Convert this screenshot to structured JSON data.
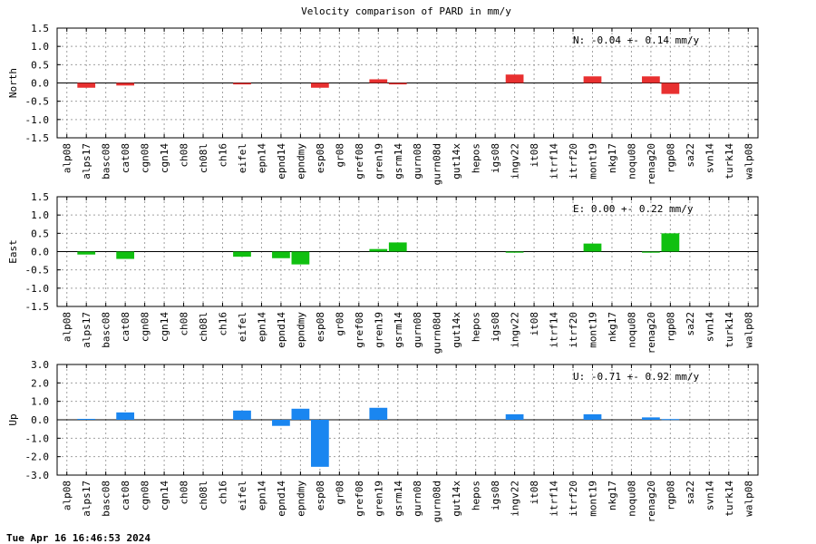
{
  "title": "Velocity comparison of PARD in mm/y",
  "timestamp": "Tue Apr 16 16:46:53 2024",
  "chart_data": [
    {
      "type": "bar",
      "ylabel": "North",
      "stat": "N:  -0.04 +-  0.14 mm/y",
      "color": "#e83030",
      "ylim": [
        -1.5,
        1.5
      ],
      "yticks": [
        -1.5,
        -1.0,
        -0.5,
        0.0,
        0.5,
        1.0,
        1.5
      ],
      "ytick_labels": [
        "-1.5",
        "-1.0",
        "-0.5",
        "0.0",
        "0.5",
        "1.0",
        "1.5"
      ],
      "grid": true,
      "categories": [
        "alp08",
        "alps17",
        "basc08",
        "cat08",
        "cgn08",
        "cgn14",
        "ch08",
        "ch08l",
        "ch16",
        "eifel",
        "epn14",
        "epnd14",
        "epndmy",
        "esp08",
        "gr08",
        "gref08",
        "gren19",
        "gsrm14",
        "gurn08",
        "gurn08d",
        "gut14x",
        "hepos",
        "igs08",
        "ingv22",
        "it08",
        "itrf14",
        "itrf20",
        "mont19",
        "nkg17",
        "noqu08",
        "renag20",
        "rgp08",
        "sa22",
        "svn14",
        "turk14",
        "walp08"
      ],
      "values": [
        null,
        -0.13,
        null,
        -0.07,
        null,
        null,
        null,
        null,
        null,
        -0.04,
        null,
        null,
        null,
        -0.13,
        null,
        null,
        0.1,
        -0.04,
        null,
        null,
        null,
        null,
        null,
        0.23,
        null,
        null,
        null,
        0.18,
        null,
        null,
        0.18,
        -0.3,
        null,
        null,
        null,
        null
      ]
    },
    {
      "type": "bar",
      "ylabel": "East",
      "stat": "E:   0.00 +-  0.22 mm/y",
      "color": "#10c010",
      "ylim": [
        -1.5,
        1.5
      ],
      "yticks": [
        -1.5,
        -1.0,
        -0.5,
        0.0,
        0.5,
        1.0,
        1.5
      ],
      "ytick_labels": [
        "-1.5",
        "-1.0",
        "-0.5",
        "0.0",
        "0.5",
        "1.0",
        "1.5"
      ],
      "grid": true,
      "categories": [
        "alp08",
        "alps17",
        "basc08",
        "cat08",
        "cgn08",
        "cgn14",
        "ch08",
        "ch08l",
        "ch16",
        "eifel",
        "epn14",
        "epnd14",
        "epndmy",
        "esp08",
        "gr08",
        "gref08",
        "gren19",
        "gsrm14",
        "gurn08",
        "gurn08d",
        "gut14x",
        "hepos",
        "igs08",
        "ingv22",
        "it08",
        "itrf14",
        "itrf20",
        "mont19",
        "nkg17",
        "noqu08",
        "renag20",
        "rgp08",
        "sa22",
        "svn14",
        "turk14",
        "walp08"
      ],
      "values": [
        null,
        -0.08,
        null,
        -0.2,
        null,
        null,
        null,
        null,
        null,
        -0.14,
        null,
        -0.18,
        -0.35,
        null,
        null,
        null,
        0.07,
        0.25,
        null,
        null,
        null,
        null,
        null,
        -0.03,
        null,
        null,
        null,
        0.22,
        null,
        null,
        -0.03,
        0.5,
        null,
        null,
        null,
        null
      ]
    },
    {
      "type": "bar",
      "ylabel": "Up",
      "stat": "U:  -0.71 +-  0.92 mm/y",
      "color": "#1a86f0",
      "ylim": [
        -3.0,
        3.0
      ],
      "yticks": [
        -3.0,
        -2.0,
        -1.0,
        0.0,
        1.0,
        2.0,
        3.0
      ],
      "ytick_labels": [
        "-3.0",
        "-2.0",
        "-1.0",
        "0.0",
        "1.0",
        "2.0",
        "3.0"
      ],
      "grid": true,
      "categories": [
        "alp08",
        "alps17",
        "basc08",
        "cat08",
        "cgn08",
        "cgn14",
        "ch08",
        "ch08l",
        "ch16",
        "eifel",
        "epn14",
        "epnd14",
        "epndmy",
        "esp08",
        "gr08",
        "gref08",
        "gren19",
        "gsrm14",
        "gurn08",
        "gurn08d",
        "gut14x",
        "hepos",
        "igs08",
        "ingv22",
        "it08",
        "itrf14",
        "itrf20",
        "mont19",
        "nkg17",
        "noqu08",
        "renag20",
        "rgp08",
        "sa22",
        "svn14",
        "turk14",
        "walp08"
      ],
      "values": [
        null,
        0.05,
        null,
        0.4,
        null,
        null,
        null,
        null,
        null,
        0.5,
        null,
        -0.33,
        0.6,
        -2.55,
        null,
        null,
        0.65,
        null,
        null,
        null,
        null,
        null,
        null,
        0.3,
        null,
        null,
        null,
        0.3,
        null,
        null,
        0.13,
        0.04,
        null,
        null,
        null,
        null
      ]
    }
  ]
}
